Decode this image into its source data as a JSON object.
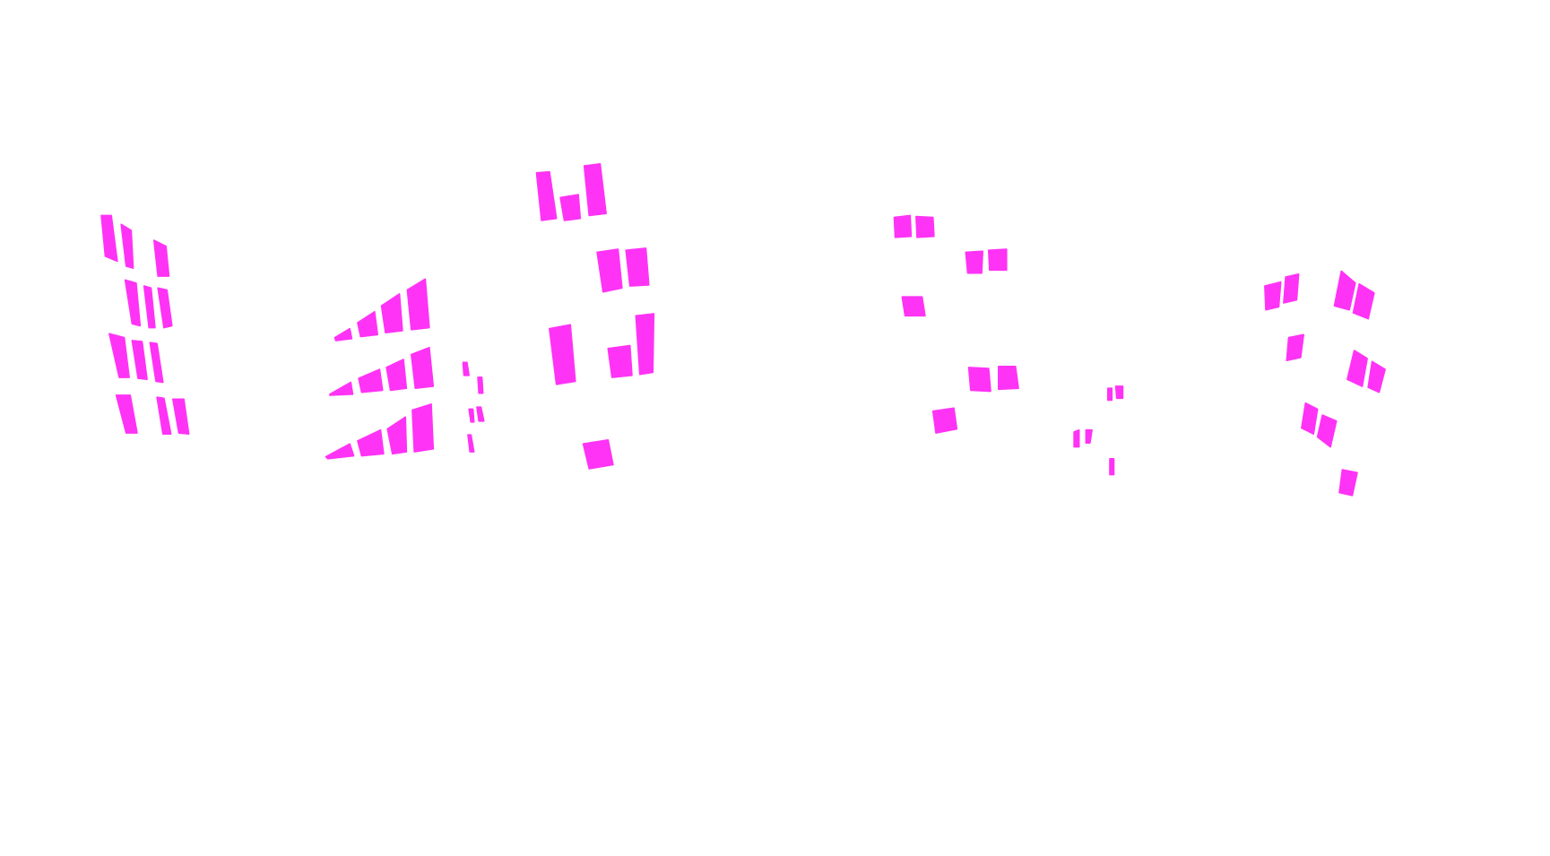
{
  "canvas": {
    "background_color": "#ffffff",
    "mask_color": "#ff33f5",
    "content": "segmentation-mask-windows"
  },
  "groups": [
    {
      "name": "building-left"
    },
    {
      "name": "building-center-left"
    },
    {
      "name": "building-center"
    },
    {
      "name": "building-center-right"
    },
    {
      "name": "building-right"
    }
  ]
}
